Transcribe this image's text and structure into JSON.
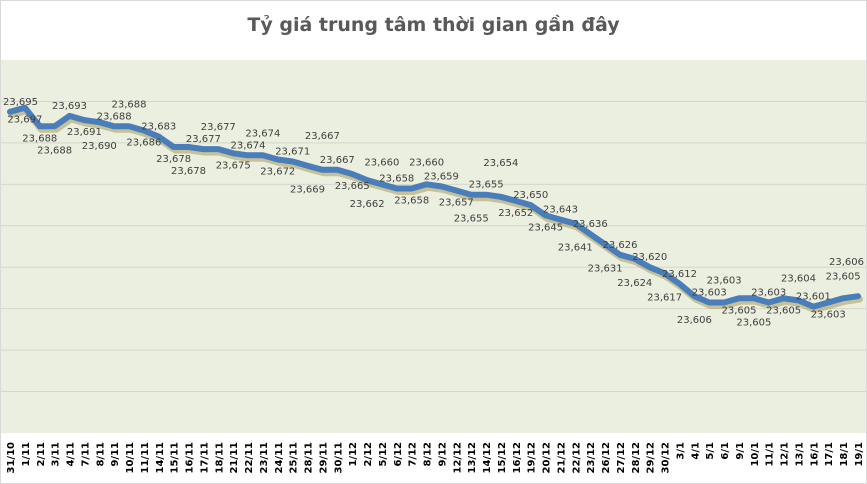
{
  "chart_data": {
    "type": "line",
    "title": "Tỷ giá trung tâm thời gian gần đây",
    "xlabel": "",
    "ylabel": "",
    "ylim": [
      23540,
      23720
    ],
    "grid": true,
    "legend": "none",
    "categories": [
      "31/10",
      "1/11",
      "2/11",
      "3/11",
      "4/11",
      "7/11",
      "8/11",
      "9/11",
      "10/11",
      "11/11",
      "14/11",
      "15/11",
      "16/11",
      "17/11",
      "18/11",
      "21/11",
      "22/11",
      "23/11",
      "24/11",
      "25/11",
      "28/11",
      "29/11",
      "30/11",
      "1/12",
      "2/12",
      "5/12",
      "6/12",
      "7/12",
      "8/12",
      "9/12",
      "12/12",
      "13/12",
      "14/12",
      "15/12",
      "16/12",
      "19/12",
      "20/12",
      "21/12",
      "22/12",
      "23/12",
      "26/12",
      "27/12",
      "28/12",
      "29/12",
      "30/12",
      "3/1",
      "4/1",
      "5/1",
      "6/1",
      "9/1",
      "10/1",
      "11/1",
      "12/1",
      "13/1",
      "16/1",
      "17/1",
      "18/1",
      "19/1"
    ],
    "series": [
      {
        "name": "Tỷ giá trung tâm",
        "color": "#4a7ebb",
        "values": [
          23695,
          23697,
          23688,
          23688,
          23693,
          23691,
          23690,
          23688,
          23688,
          23686,
          23683,
          23678,
          23678,
          23677,
          23677,
          23675,
          23674,
          23674,
          23672,
          23671,
          23669,
          23667,
          23667,
          23665,
          23662,
          23660,
          23658,
          23658,
          23660,
          23659,
          23657,
          23655,
          23655,
          23654,
          23652,
          23650,
          23645,
          23643,
          23641,
          23636,
          23631,
          23626,
          23624,
          23620,
          23617,
          23612,
          23606,
          23603,
          23603,
          23605,
          23605,
          23603,
          23605,
          23604,
          23601,
          23603,
          23605,
          23606
        ]
      }
    ]
  }
}
